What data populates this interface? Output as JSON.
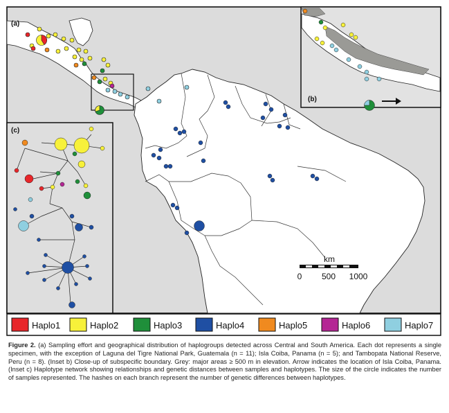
{
  "figure": {
    "panel_labels": {
      "a": "(a)",
      "b": "(b)",
      "c": "(c)"
    },
    "scale_bar": {
      "unit": "km",
      "ticks": [
        "0",
        "500",
        "1000"
      ]
    },
    "colors": {
      "Haplo1": "#e8262a",
      "Haplo2": "#f7f13a",
      "Haplo3": "#1f8f3a",
      "Haplo4": "#1f4fa3",
      "Haplo5": "#f08a1f",
      "Haplo6": "#b42694",
      "Haplo7": "#8fcfe0",
      "land_gray": "#9a9a96",
      "inset_bg": "#dededd",
      "sea": "#dcdcdc"
    },
    "legend": [
      {
        "label": "Haplo1",
        "color": "#e8262a"
      },
      {
        "label": "Haplo2",
        "color": "#f7f13a"
      },
      {
        "label": "Haplo3",
        "color": "#1f8f3a"
      },
      {
        "label": "Haplo4",
        "color": "#1f4fa3"
      },
      {
        "label": "Haplo5",
        "color": "#f08a1f"
      },
      {
        "label": "Haplo6",
        "color": "#b42694"
      },
      {
        "label": "Haplo7",
        "color": "#8fcfe0"
      }
    ],
    "arrow": "arrow-icon"
  },
  "caption": {
    "label": "Figure 2.",
    "text": "(a) Sampling effort and geographical distribution of haplogroups detected across Central and South America. Each dot represents a single specimen, with the exception of Laguna del Tigre National Park, Guatemala (n = 11); Isla Coiba, Panama (n = 5); and Tambopata National Reserve, Peru (n = 8). (Inset b) Close-up of subspecific boundary. Grey: major areas ≥ 500 m in elevation. Arrow indicates the location of Isla Coiba, Panama. (Inset c) Haplotype network showing relationships and genetic distances between samples and haplotypes. The size of the circle indicates the number of samples represented. The hashes on each branch represent the number of genetic differences between haplotypes."
  }
}
